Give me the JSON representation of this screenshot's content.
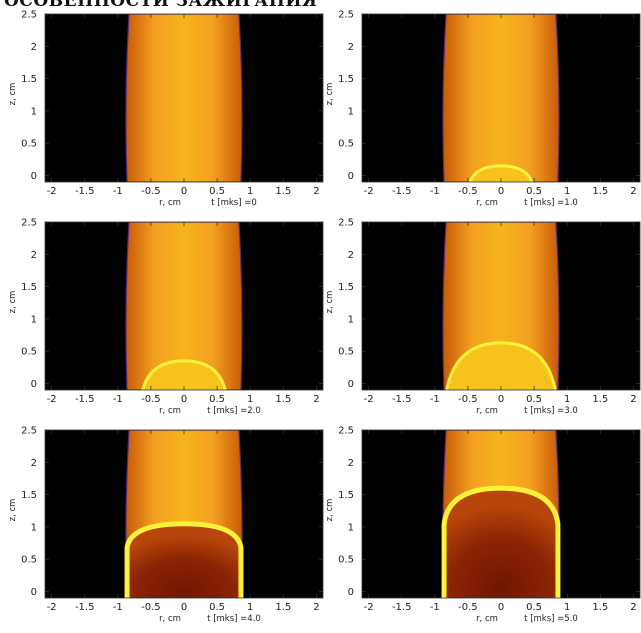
{
  "header": "ОСОБЕННОСТИ ЗАЖИГАНИЯ",
  "colors": {
    "background": "#000000",
    "column_dark": "#c85a08",
    "column_light": "#f3a020",
    "column_core": "#f6b41c",
    "front": "#fff23a",
    "burnt": "#8c2404",
    "edge": "#5a2a80"
  },
  "chart_data": [
    {
      "type": "heatmap",
      "xlabel": "r, cm",
      "ylabel": "z, cm",
      "time_label": "t [mks] =0",
      "xlim": [
        -2.1,
        2.1
      ],
      "ylim": [
        -0.1,
        2.5
      ],
      "xticks": [
        "-2",
        "-1.5",
        "-1",
        "-0.5",
        "0",
        "0.5",
        "1",
        "1.5",
        "2"
      ],
      "yticks": [
        "0",
        "0.5",
        "1",
        "1.5",
        "2",
        "2.5"
      ],
      "column_radius": 0.83,
      "front_height": 0,
      "front_visible": false
    },
    {
      "type": "heatmap",
      "xlabel": "r, cm",
      "ylabel": "z, cm",
      "time_label": "t [mks] =1.0",
      "xlim": [
        -2.1,
        2.1
      ],
      "ylim": [
        -0.1,
        2.5
      ],
      "xticks": [
        "-2",
        "-1.5",
        "-1",
        "-0.5",
        "0",
        "0.5",
        "1",
        "1.5",
        "2"
      ],
      "yticks": [
        "0",
        "0.5",
        "1",
        "1.5",
        "2",
        "2.5"
      ],
      "column_radius": 0.83,
      "front_height": 0.15,
      "front_visible": true
    },
    {
      "type": "heatmap",
      "xlabel": "r, cm",
      "ylabel": "z, cm",
      "time_label": "t [mks] =2.0",
      "xlim": [
        -2.1,
        2.1
      ],
      "ylim": [
        -0.1,
        2.5
      ],
      "xticks": [
        "-2",
        "-1.5",
        "-1",
        "-0.5",
        "0",
        "0.5",
        "1",
        "1.5",
        "2"
      ],
      "yticks": [
        "0",
        "0.5",
        "1",
        "1.5",
        "2",
        "2.5"
      ],
      "column_radius": 0.83,
      "front_height": 0.35,
      "front_visible": true
    },
    {
      "type": "heatmap",
      "xlabel": "r, cm",
      "ylabel": "z, cm",
      "time_label": "t [mks] =3.0",
      "xlim": [
        -2.1,
        2.1
      ],
      "ylim": [
        -0.1,
        2.5
      ],
      "xticks": [
        "-2",
        "-1.5",
        "-1",
        "-0.5",
        "0",
        "0.5",
        "1",
        "1.5",
        "2"
      ],
      "yticks": [
        "0",
        "0.5",
        "1",
        "1.5",
        "2",
        "2.5"
      ],
      "column_radius": 0.83,
      "front_height": 0.63,
      "front_visible": true
    },
    {
      "type": "heatmap",
      "xlabel": "r, cm",
      "ylabel": "z, cm",
      "time_label": "t [mks] =4.0",
      "xlim": [
        -2.1,
        2.1
      ],
      "ylim": [
        -0.1,
        2.5
      ],
      "xticks": [
        "-2",
        "-1.5",
        "-1",
        "-0.5",
        "0",
        "0.5",
        "1",
        "1.5",
        "2"
      ],
      "yticks": [
        "0",
        "0.5",
        "1",
        "1.5",
        "2",
        "2.5"
      ],
      "column_radius": 0.83,
      "front_height": 1.05,
      "front_visible": true
    },
    {
      "type": "heatmap",
      "xlabel": "r, cm",
      "ylabel": "z, cm",
      "time_label": "t [mks] =5.0",
      "xlim": [
        -2.1,
        2.1
      ],
      "ylim": [
        -0.1,
        2.5
      ],
      "xticks": [
        "-2",
        "-1.5",
        "-1",
        "-0.5",
        "0",
        "0.5",
        "1",
        "1.5",
        "2"
      ],
      "yticks": [
        "0",
        "0.5",
        "1",
        "1.5",
        "2",
        "2.5"
      ],
      "column_radius": 0.83,
      "front_height": 1.6,
      "front_visible": true
    }
  ]
}
